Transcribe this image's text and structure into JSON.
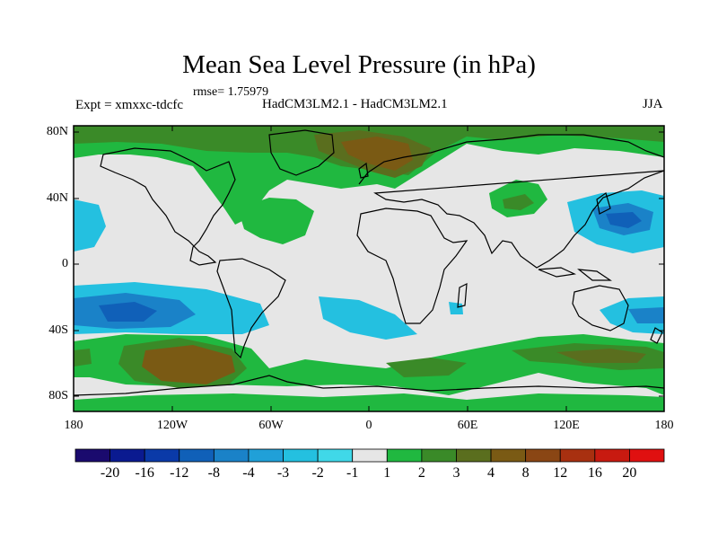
{
  "title": "Mean Sea Level Pressure (in hPa)",
  "rmse": "rmse= 1.75979",
  "expt": "Expt = xmxxc-tdcfc",
  "models": "HadCM3LM2.1 - HadCM3LM2.1",
  "season": "JJA",
  "y_ticks": [
    "80N",
    "40N",
    "0",
    "40S",
    "80S"
  ],
  "x_ticks": [
    "180",
    "120W",
    "60W",
    "0",
    "60E",
    "120E",
    "180"
  ],
  "colorbar": {
    "labels": [
      "-20",
      "-16",
      "-12",
      "-8",
      "-4",
      "-3",
      "-2",
      "-1",
      "1",
      "2",
      "3",
      "4",
      "8",
      "12",
      "16",
      "20"
    ],
    "colors": [
      "#1a0a6e",
      "#0a1a90",
      "#0a3aa8",
      "#1060b8",
      "#1a82c8",
      "#20a0d8",
      "#24c0e0",
      "#40d8e8",
      "#e6e6e6",
      "#20b840",
      "#3a8a28",
      "#5a6e1e",
      "#7a5a14",
      "#8a4614",
      "#a83010",
      "#c81a10",
      "#e01010"
    ]
  }
}
